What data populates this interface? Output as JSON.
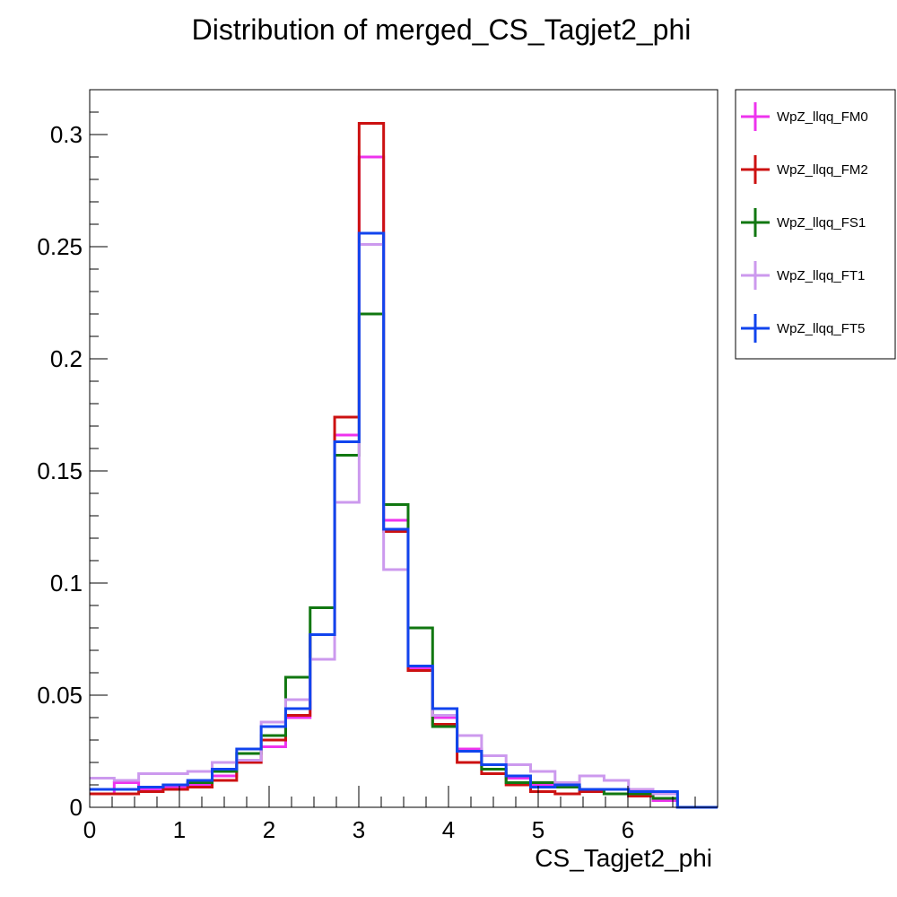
{
  "chart_data": {
    "type": "line",
    "subtype": "step-histogram",
    "title": "Distribution of merged_CS_Tagjet2_phi",
    "xlabel": "CS_Tagjet2_phi",
    "ylabel": "",
    "xlim": [
      0,
      7
    ],
    "ylim": [
      0,
      0.32
    ],
    "x_ticks": [
      0,
      1,
      2,
      3,
      4,
      5,
      6
    ],
    "x_tick_labels": [
      "0",
      "1",
      "2",
      "3",
      "4",
      "5",
      "6"
    ],
    "y_ticks": [
      0,
      0.05,
      0.1,
      0.15,
      0.2,
      0.25,
      0.3
    ],
    "y_tick_labels": [
      "0",
      "0.05",
      "0.1",
      "0.15",
      "0.2",
      "0.25",
      "0.3"
    ],
    "grid": false,
    "legend_position": "outside-top-right",
    "bin_edges": [
      0,
      0.2731,
      0.5461,
      0.8192,
      1.0922,
      1.3653,
      1.6384,
      1.9114,
      2.1845,
      2.4575,
      2.7306,
      3.0036,
      3.2767,
      3.5498,
      3.8228,
      4.0959,
      4.3689,
      4.642,
      4.915,
      5.1881,
      5.4612,
      5.7342,
      6.0073,
      6.2803,
      6.5534,
      7.0
    ],
    "series": [
      {
        "name": "WpZ_llqq_FM0",
        "color": "#ee33ee",
        "values": [
          0.006,
          0.011,
          0.008,
          0.009,
          0.01,
          0.014,
          0.02,
          0.027,
          0.04,
          0.077,
          0.166,
          0.29,
          0.128,
          0.062,
          0.04,
          0.026,
          0.019,
          0.013,
          0.01,
          0.009,
          0.007,
          0.006,
          0.005,
          0.003,
          0.0
        ]
      },
      {
        "name": "WpZ_llqq_FM2",
        "color": "#cc1111",
        "values": [
          0.006,
          0.006,
          0.007,
          0.008,
          0.009,
          0.012,
          0.02,
          0.03,
          0.041,
          0.077,
          0.174,
          0.305,
          0.123,
          0.061,
          0.037,
          0.02,
          0.015,
          0.01,
          0.007,
          0.006,
          0.007,
          0.006,
          0.005,
          0.004,
          0.0
        ]
      },
      {
        "name": "WpZ_llqq_FS1",
        "color": "#117711",
        "values": [
          0.008,
          0.008,
          0.009,
          0.01,
          0.011,
          0.016,
          0.024,
          0.032,
          0.058,
          0.089,
          0.157,
          0.22,
          0.135,
          0.08,
          0.036,
          0.025,
          0.017,
          0.011,
          0.011,
          0.009,
          0.008,
          0.006,
          0.006,
          0.004,
          0.0
        ]
      },
      {
        "name": "WpZ_llqq_FT1",
        "color": "#cc99ee",
        "values": [
          0.013,
          0.012,
          0.015,
          0.015,
          0.016,
          0.02,
          0.021,
          0.038,
          0.048,
          0.066,
          0.136,
          0.251,
          0.106,
          0.063,
          0.041,
          0.032,
          0.023,
          0.019,
          0.016,
          0.011,
          0.014,
          0.012,
          0.008,
          0.006,
          0.0
        ]
      },
      {
        "name": "WpZ_llqq_FT5",
        "color": "#1144ee",
        "values": [
          0.008,
          0.008,
          0.009,
          0.01,
          0.012,
          0.017,
          0.026,
          0.036,
          0.044,
          0.077,
          0.163,
          0.256,
          0.124,
          0.063,
          0.044,
          0.025,
          0.019,
          0.014,
          0.009,
          0.01,
          0.008,
          0.008,
          0.007,
          0.007,
          0.0
        ]
      }
    ]
  }
}
